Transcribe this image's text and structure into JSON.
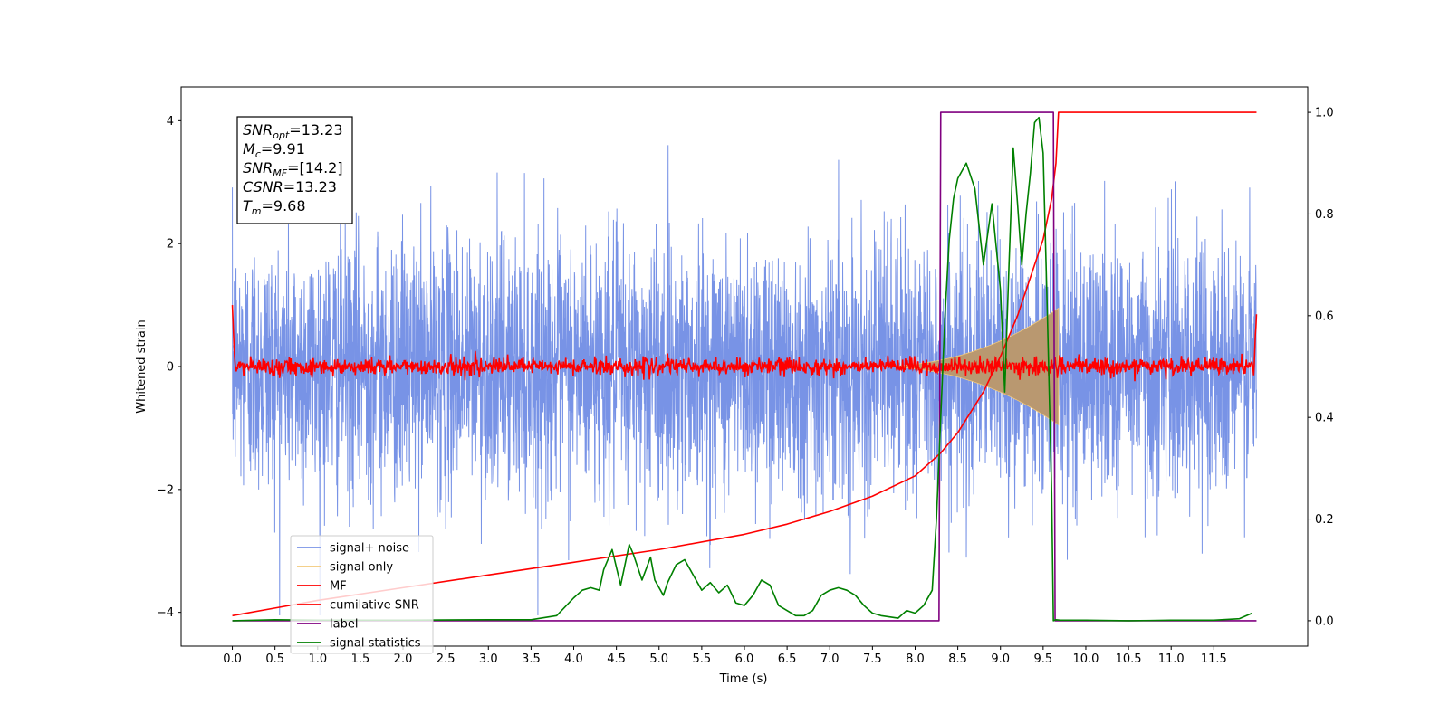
{
  "chart_data": {
    "type": "line",
    "title": "",
    "xlabel": "Time (s)",
    "ylabel": "Whitened strain",
    "xlim": [
      -0.6,
      12.6
    ],
    "ylim": [
      -4.55,
      4.55
    ],
    "ylim_right": [
      -0.05,
      1.05
    ],
    "x_ticks": [
      "0.0",
      "0.5",
      "1.0",
      "1.5",
      "2.0",
      "2.5",
      "3.0",
      "3.5",
      "4.0",
      "4.5",
      "5.0",
      "5.5",
      "6.0",
      "6.5",
      "7.0",
      "7.5",
      "8.0",
      "8.5",
      "9.0",
      "9.5",
      "10.0",
      "10.5",
      "11.0",
      "11.5"
    ],
    "y_ticks_left": [
      "4",
      "2",
      "0",
      "−2",
      "−4"
    ],
    "y_ticks_right": [
      "1.0",
      "0.8",
      "0.6",
      "0.4",
      "0.2",
      "0.0"
    ],
    "legend_position": "lower-left",
    "grid": false,
    "annotation": {
      "lines": [
        {
          "base": "SNR",
          "sub": "opt",
          "rest": "=13.23"
        },
        {
          "base": "M",
          "sub": "c",
          "rest": "=9.91"
        },
        {
          "base": "SNR",
          "sub": "MF",
          "rest": "=[14.2]"
        },
        {
          "base": "CSNR",
          "sub": "",
          "rest": "=13.23"
        },
        {
          "base": "T",
          "sub": "m",
          "rest": "=9.68"
        }
      ]
    },
    "series": [
      {
        "name": "signal+ noise",
        "color": "#7893e6",
        "axis": "left",
        "kind": "noise",
        "x_range": [
          0,
          12
        ],
        "mean": 0.0,
        "std": 1.05
      },
      {
        "name": "signal only",
        "color": "#f3c97a",
        "axis": "left",
        "kind": "chirp",
        "fill": "#b99870",
        "x_range": [
          7.5,
          9.68
        ],
        "peak_amplitude": 0.95
      },
      {
        "name": "MF",
        "color": "#ff0000",
        "axis": "left",
        "kind": "noise",
        "x_range": [
          0,
          12
        ],
        "mean": 0.0,
        "std": 0.07,
        "edge_values": [
          1.0,
          0.85
        ]
      },
      {
        "name": "cumilative SNR",
        "color": "#ff0000",
        "axis": "right",
        "x": [
          0,
          0.5,
          1.0,
          2.0,
          3.0,
          4.0,
          5.0,
          6.0,
          6.5,
          7.0,
          7.5,
          8.0,
          8.3,
          8.5,
          8.8,
          9.0,
          9.2,
          9.4,
          9.5,
          9.6,
          9.65,
          9.68,
          12.0
        ],
        "values": [
          0.01,
          0.025,
          0.04,
          0.065,
          0.09,
          0.115,
          0.14,
          0.17,
          0.19,
          0.215,
          0.245,
          0.285,
          0.33,
          0.37,
          0.45,
          0.52,
          0.6,
          0.7,
          0.75,
          0.83,
          0.9,
          1.0,
          1.0
        ]
      },
      {
        "name": "label",
        "color": "#800080",
        "axis": "right",
        "x": [
          0,
          8.28,
          8.3,
          9.62,
          9.64,
          12.0
        ],
        "values": [
          0.0,
          0.0,
          1.0,
          1.0,
          0.0,
          0.0
        ]
      },
      {
        "name": "signal statistics",
        "color": "#008000",
        "axis": "right",
        "x": [
          0,
          0.5,
          1.0,
          2.0,
          3.0,
          3.5,
          3.8,
          4.0,
          4.1,
          4.2,
          4.3,
          4.35,
          4.45,
          4.55,
          4.65,
          4.7,
          4.8,
          4.9,
          4.95,
          5.05,
          5.1,
          5.2,
          5.3,
          5.4,
          5.5,
          5.6,
          5.7,
          5.8,
          5.9,
          6.0,
          6.1,
          6.2,
          6.3,
          6.4,
          6.5,
          6.6,
          6.7,
          6.8,
          6.9,
          7.0,
          7.1,
          7.2,
          7.3,
          7.4,
          7.5,
          7.6,
          7.8,
          7.9,
          8.0,
          8.1,
          8.2,
          8.25,
          8.3,
          8.35,
          8.4,
          8.45,
          8.5,
          8.6,
          8.7,
          8.8,
          8.9,
          9.0,
          9.05,
          9.1,
          9.15,
          9.2,
          9.25,
          9.3,
          9.35,
          9.4,
          9.45,
          9.5,
          9.55,
          9.6,
          9.62,
          9.65,
          9.7,
          10.0,
          10.5,
          11.0,
          11.5,
          11.8,
          11.95
        ],
        "values": [
          0.0,
          0.002,
          0.001,
          0.001,
          0.002,
          0.002,
          0.01,
          0.045,
          0.06,
          0.065,
          0.06,
          0.1,
          0.14,
          0.07,
          0.15,
          0.13,
          0.08,
          0.125,
          0.08,
          0.05,
          0.075,
          0.11,
          0.12,
          0.09,
          0.06,
          0.075,
          0.055,
          0.07,
          0.035,
          0.03,
          0.05,
          0.08,
          0.07,
          0.03,
          0.02,
          0.01,
          0.01,
          0.02,
          0.05,
          0.06,
          0.065,
          0.06,
          0.05,
          0.03,
          0.015,
          0.01,
          0.005,
          0.02,
          0.015,
          0.03,
          0.06,
          0.2,
          0.4,
          0.6,
          0.75,
          0.83,
          0.87,
          0.9,
          0.85,
          0.7,
          0.82,
          0.65,
          0.45,
          0.7,
          0.93,
          0.82,
          0.7,
          0.8,
          0.88,
          0.98,
          0.99,
          0.92,
          0.6,
          0.25,
          0.0,
          0.002,
          0.001,
          0.001,
          0.0,
          0.001,
          0.001,
          0.004,
          0.015
        ]
      }
    ]
  }
}
